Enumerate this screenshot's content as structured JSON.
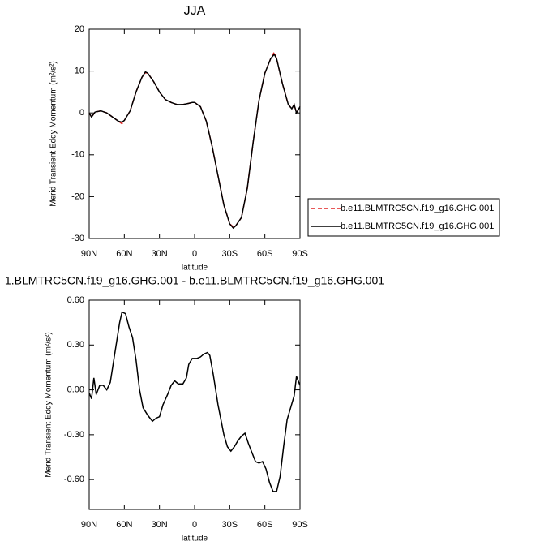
{
  "chart_data": [
    {
      "type": "line",
      "title": "JJA",
      "xlabel": "latitude",
      "ylabel": "Merid Transient Eddy Momentum (m²/s²)",
      "x": [
        90,
        88,
        85,
        80,
        75,
        70,
        65,
        62,
        60,
        55,
        50,
        45,
        42,
        40,
        35,
        30,
        25,
        20,
        15,
        10,
        5,
        2,
        0,
        -5,
        -10,
        -15,
        -20,
        -25,
        -30,
        -33,
        -35,
        -40,
        -45,
        -50,
        -55,
        -60,
        -65,
        -68,
        -70,
        -75,
        -80,
        -83,
        -85,
        -87,
        -90
      ],
      "series": [
        {
          "name": "b.e11.BLMTRC5CN.f19_g16.GHG.001",
          "color": "#e02020",
          "style": "dashed",
          "values": [
            0,
            -1,
            0.2,
            0.5,
            0,
            -1,
            -2,
            -2.6,
            -1.8,
            0.5,
            5,
            8.5,
            9.6,
            9.5,
            7.5,
            5,
            3.2,
            2.5,
            2,
            2,
            2.3,
            2.5,
            2.5,
            1.5,
            -2,
            -8,
            -15,
            -22,
            -26.5,
            -27.2,
            -27,
            -25,
            -18,
            -7,
            3,
            9.5,
            13,
            14.5,
            13,
            7,
            2,
            1,
            2,
            0,
            1.5
          ]
        },
        {
          "name": "b.e11.BLMTRC5CN.f19_g16.GHG.001",
          "color": "#000000",
          "style": "solid",
          "values": [
            0,
            -1,
            0.2,
            0.5,
            0,
            -1,
            -2,
            -2.2,
            -1.8,
            0.5,
            5,
            8.5,
            9.8,
            9.5,
            7.5,
            5,
            3.2,
            2.5,
            2,
            2,
            2.3,
            2.5,
            2.5,
            1.5,
            -2,
            -8,
            -15,
            -22,
            -26.5,
            -27.5,
            -27,
            -25,
            -18,
            -7,
            3,
            9.5,
            13,
            14,
            13,
            7,
            2,
            1,
            2,
            0,
            1.5
          ]
        }
      ],
      "xlim": [
        90,
        -90
      ],
      "xticks": [
        {
          "value": 90,
          "label": "90N"
        },
        {
          "value": 60,
          "label": "60N"
        },
        {
          "value": 30,
          "label": "30N"
        },
        0,
        {
          "value": -30,
          "label": "30S"
        },
        {
          "value": -60,
          "label": "60S"
        },
        {
          "value": -90,
          "label": "90S"
        }
      ],
      "ylim": [
        -30,
        20
      ],
      "yticks": [
        -30,
        -20,
        -10,
        0,
        10,
        20
      ],
      "legend": "right"
    },
    {
      "type": "line",
      "title": "1.BLMTRC5CN.f19_g16.GHG.001 - b.e11.BLMTRC5CN.f19_g16.GHG.001",
      "xlabel": "latitude",
      "ylabel": "Merid Transient Eddy Momentum (m²/s²)",
      "x": [
        90,
        88,
        86,
        84,
        81,
        78,
        75,
        72,
        70,
        67,
        64,
        62,
        59,
        56,
        53,
        50,
        47,
        44,
        40,
        36,
        33,
        30,
        27,
        23,
        20,
        17,
        14,
        10,
        7,
        5,
        2,
        -2,
        -5,
        -8,
        -11,
        -13,
        -16,
        -20,
        -25,
        -28,
        -31,
        -34,
        -37,
        -40,
        -43,
        -46,
        -49,
        -52,
        -55,
        -58,
        -61,
        -64,
        -67,
        -70,
        -73,
        -76,
        -79,
        -82,
        -85,
        -87,
        -89,
        -90
      ],
      "values": [
        -0.02,
        -0.06,
        0.08,
        -0.03,
        0.03,
        0.03,
        0.0,
        0.05,
        0.15,
        0.3,
        0.45,
        0.52,
        0.51,
        0.42,
        0.35,
        0.2,
        0.0,
        -0.12,
        -0.17,
        -0.21,
        -0.19,
        -0.18,
        -0.1,
        -0.03,
        0.03,
        0.06,
        0.04,
        0.04,
        0.08,
        0.17,
        0.21,
        0.21,
        0.22,
        0.24,
        0.25,
        0.23,
        0.1,
        -0.1,
        -0.3,
        -0.38,
        -0.41,
        -0.38,
        -0.34,
        -0.31,
        -0.29,
        -0.36,
        -0.42,
        -0.48,
        -0.49,
        -0.48,
        -0.53,
        -0.62,
        -0.68,
        -0.68,
        -0.58,
        -0.38,
        -0.2,
        -0.12,
        -0.04,
        0.09,
        0.05,
        0.03
      ],
      "color": "#000000",
      "xlim": [
        90,
        -90
      ],
      "xticks": [
        {
          "value": 90,
          "label": "90N"
        },
        {
          "value": 60,
          "label": "60N"
        },
        {
          "value": 30,
          "label": "30N"
        },
        0,
        {
          "value": -30,
          "label": "30S"
        },
        {
          "value": -60,
          "label": "60S"
        },
        {
          "value": -90,
          "label": "90S"
        }
      ],
      "ylim": [
        -0.8,
        0.6
      ],
      "yticks": [
        {
          "value": 0.6,
          "label": "0.60"
        },
        {
          "value": 0.3,
          "label": "0.30"
        },
        {
          "value": 0,
          "label": "0.00"
        },
        {
          "value": -0.3,
          "label": "-0.30"
        },
        {
          "value": -0.6,
          "label": "-0.60"
        }
      ]
    }
  ]
}
